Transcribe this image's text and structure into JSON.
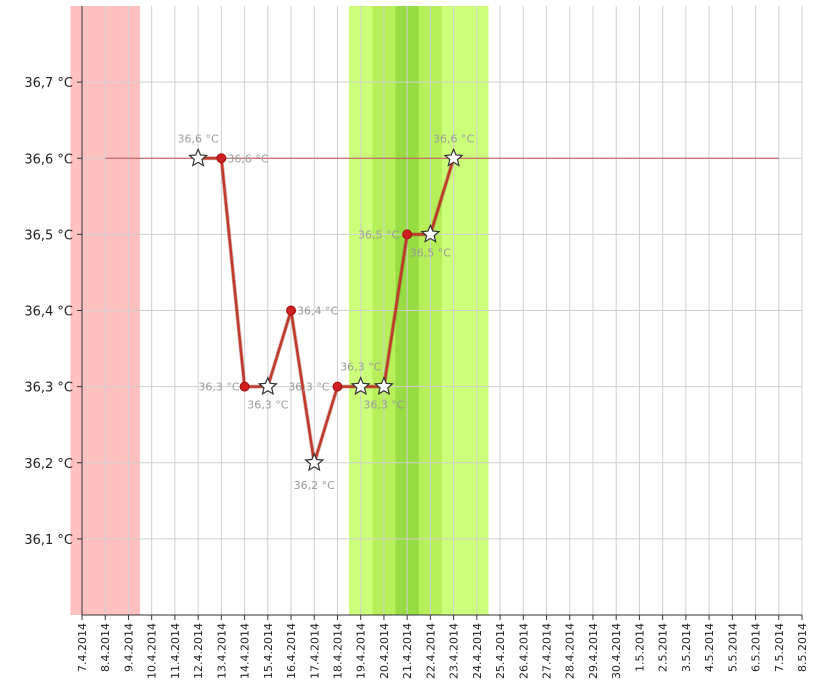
{
  "chart_data": {
    "type": "line",
    "y_unit": "°C",
    "ylim": [
      36.0,
      36.8
    ],
    "y_ticks": [
      "36,1 °C",
      "36,2 °C",
      "36,3 °C",
      "36,4 °C",
      "36,5 °C",
      "36,6 °C",
      "36,7 °C"
    ],
    "x_ticks": [
      "7.4.2014",
      "8.4.2014",
      "9.4.2014",
      "10.4.2014",
      "11.4.2014",
      "12.4.2014",
      "13.4.2014",
      "14.4.2014",
      "15.4.2014",
      "16.4.2014",
      "17.4.2014",
      "18.4.2014",
      "19.4.2014",
      "20.4.2014",
      "21.4.2014",
      "22.4.2014",
      "23.4.2014",
      "24.4.2014",
      "25.4.2014",
      "26.4.2014",
      "27.4.2014",
      "28.4.2014",
      "29.4.2014",
      "30.4.2014",
      "1.5.2014",
      "2.5.2014",
      "3.5.2014",
      "4.5.2014",
      "5.5.2014",
      "6.5.2014",
      "7.5.2014",
      "8.5.2014"
    ],
    "grid": true,
    "bands": [
      {
        "from": "7.4.2014",
        "to": "9.4.2014",
        "color": "#ffc0c0"
      },
      {
        "from": "19.4.2014",
        "to": "24.4.2014",
        "color": "#ccff7a"
      },
      {
        "from": "20.4.2014",
        "to": "22.4.2014",
        "color": "#b6ef5a"
      },
      {
        "from": "21.4.2014",
        "to": "21.4.2014",
        "color": "#96dc42"
      }
    ],
    "reference_line": {
      "y": 36.6,
      "from": "8.4.2014",
      "to": "7.5.2014",
      "color": "#c25050"
    },
    "series": [
      {
        "color": "#c0392b",
        "points": [
          {
            "x": "12.4.2014",
            "y": 36.6,
            "marker": "star",
            "label": "36,6 °C"
          },
          {
            "x": "13.4.2014",
            "y": 36.6,
            "marker": "dot",
            "label": "36,6 °C"
          },
          {
            "x": "14.4.2014",
            "y": 36.3,
            "marker": "dot",
            "label": "36,3 °C"
          },
          {
            "x": "15.4.2014",
            "y": 36.3,
            "marker": "star",
            "label": "36,3 °C"
          },
          {
            "x": "16.4.2014",
            "y": 36.4,
            "marker": "dot",
            "label": "36,4 °C"
          },
          {
            "x": "17.4.2014",
            "y": 36.2,
            "marker": "star",
            "label": "36,2 °C"
          },
          {
            "x": "18.4.2014",
            "y": 36.3,
            "marker": "dot",
            "label": "36,3 °C"
          },
          {
            "x": "19.4.2014",
            "y": 36.3,
            "marker": "star",
            "label": "36,3 °C"
          },
          {
            "x": "20.4.2014",
            "y": 36.3,
            "marker": "star",
            "label": "36,3 °C"
          },
          {
            "x": "21.4.2014",
            "y": 36.5,
            "marker": "dot",
            "label": "36,5 °C"
          },
          {
            "x": "22.4.2014",
            "y": 36.5,
            "marker": "star",
            "label": "36,5 °C"
          },
          {
            "x": "23.4.2014",
            "y": 36.6,
            "marker": "star",
            "label": "36,6 °C"
          }
        ]
      }
    ]
  }
}
